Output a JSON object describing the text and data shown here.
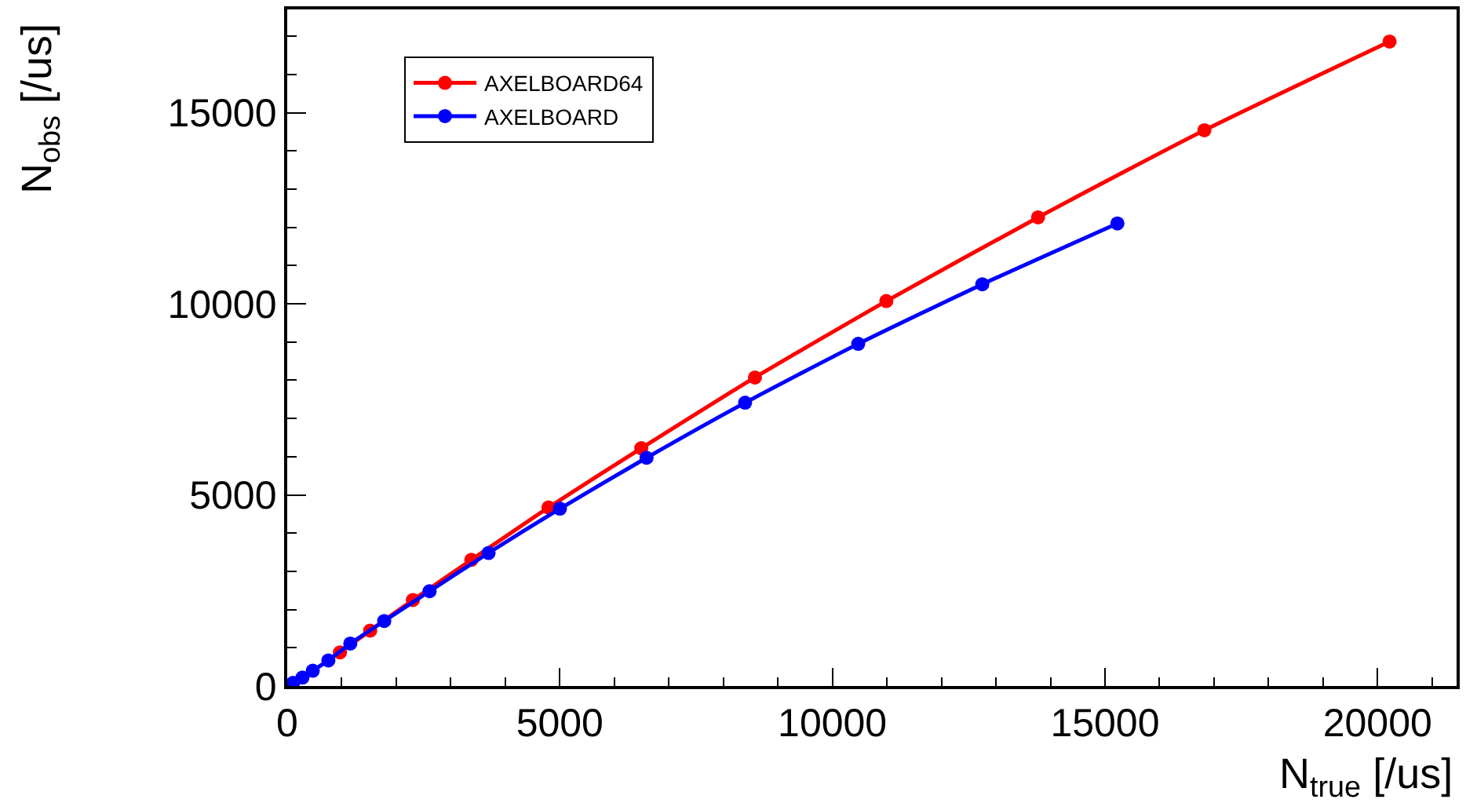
{
  "chart_data": {
    "type": "line",
    "xlabel": "N$_{true}$ [/us]",
    "ylabel": "N$_{obs}$ [/us]",
    "xlim": [
      0,
      21450
    ],
    "ylim": [
      0,
      17700
    ],
    "xticks": [
      0,
      5000,
      10000,
      15000,
      20000
    ],
    "yticks": [
      0,
      5000,
      10000,
      15000
    ],
    "legend": "top left",
    "marker": "circle",
    "line_style": "solid",
    "series": [
      {
        "name": "AXELBOARD64",
        "color": "#ff0000",
        "x": [
          967,
          1521,
          2305,
          3377,
          4792,
          6494,
          8580,
          10990,
          13773,
          16824,
          20220
        ],
        "values": [
          880,
          1450,
          2250,
          3300,
          4670,
          6220,
          8070,
          10070,
          12260,
          14540,
          16860
        ]
      },
      {
        "name": "AXELBOARD",
        "color": "#0000ff",
        "x": [
          106,
          278,
          468,
          755,
          1157,
          1779,
          2611,
          3693,
          5002,
          6591,
          8399,
          10474,
          12750,
          15228
        ],
        "values": [
          80,
          220,
          400,
          670,
          1110,
          1700,
          2480,
          3480,
          4640,
          5970,
          7410,
          8950,
          10510,
          12100
        ]
      }
    ]
  }
}
